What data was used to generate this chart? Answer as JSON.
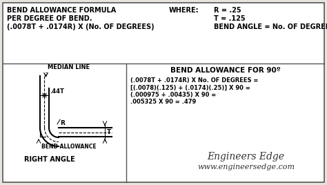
{
  "bg_color": "#e8e4de",
  "box_color": "white",
  "border_color": "#555555",
  "top_section": {
    "formula_line1": "BEND ALLOWANCE FORMULA",
    "formula_line2": "PER DEGREE OF BEND.",
    "formula_line3": "(.0078T + .0174R) X (No. OF DEGREES)",
    "where_label": "WHERE:",
    "where_r": "R = .25",
    "where_t": "T = .125",
    "where_angle": "BEND ANGLE = No. OF DEGREES"
  },
  "bottom_section": {
    "title": "BEND ALLOWANCE FOR 90º",
    "calc_line1": "(.0078T + .0174R) X No. OF DEGREES =",
    "calc_line2": "[(.0078)(.125) + (.0174)(.25)] X 90 =",
    "calc_line3": "(.000975 + .00435) X 90 =",
    "calc_line4": ".005325 X 90 = .479",
    "brand_line1": "Engineers Edge",
    "brand_line2": "www.engineersedge.com",
    "diagram_labels": {
      "median_line": "MEDIAN LINE",
      "dot44t": ".44T",
      "r_label": "R",
      "t_label": "T",
      "bend_allowance": "BEND ALLOWANCE",
      "right_angle": "RIGHT ANGLE"
    }
  },
  "font_size_small": 6.0,
  "font_size_main": 7.0,
  "font_size_title": 7.5,
  "font_size_brand1": 10,
  "font_size_brand2": 8
}
